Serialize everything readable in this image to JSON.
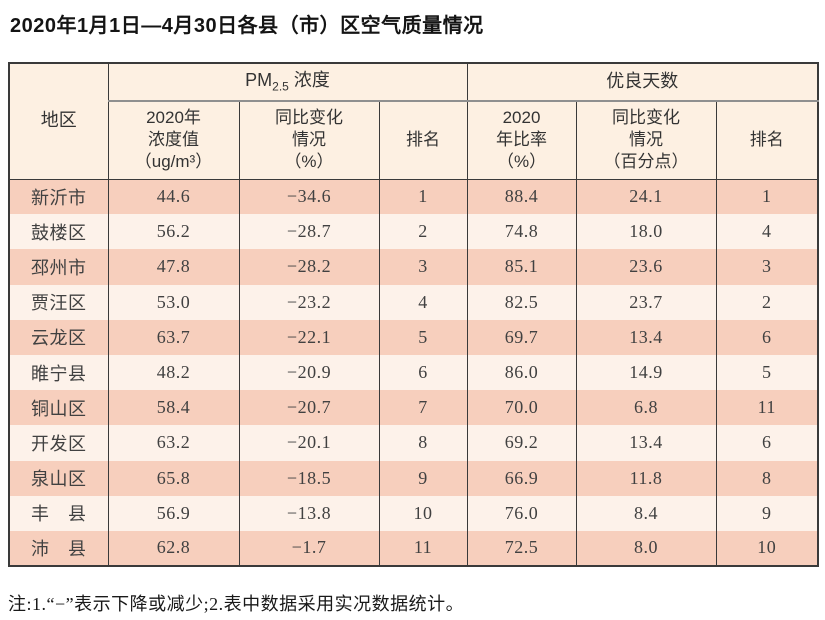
{
  "page": {
    "title": "2020年1月1日—4月30日各县（市）区空气质量情况",
    "note": "注:1.“−”表示下降或减少;2.表中数据采用实况数据统计。"
  },
  "colors": {
    "row-pink": "#f7cfbd",
    "row-light": "#fdf2ea",
    "header-bg": "#fdf0e2",
    "border-dark": "#3a3a3a",
    "divider-gray": "#8f8f8f",
    "text": "#3f3f3f"
  },
  "table": {
    "region_header": "地区",
    "group_headers": {
      "pm25_prefix": "PM",
      "pm25_sub": "2.5",
      "pm25_suffix": " 浓度",
      "good_days": "优良天数"
    },
    "sub_headers": {
      "pm25_value": "2020年\n浓度值\n（ug/m³）",
      "pm25_change": "同比变化\n情况\n（%）",
      "pm25_rank": "排名",
      "good_rate": "2020\n年比率\n（%）",
      "good_change": "同比变化\n情况\n（百分点）",
      "good_rank": "排名"
    },
    "rows": [
      {
        "region": "新沂市",
        "pm25": "44.6",
        "pm25_change": "−34.6",
        "pm25_rank": "1",
        "good_rate": "88.4",
        "good_change": "24.1",
        "good_rank": "1"
      },
      {
        "region": "鼓楼区",
        "pm25": "56.2",
        "pm25_change": "−28.7",
        "pm25_rank": "2",
        "good_rate": "74.8",
        "good_change": "18.0",
        "good_rank": "4"
      },
      {
        "region": "邳州市",
        "pm25": "47.8",
        "pm25_change": "−28.2",
        "pm25_rank": "3",
        "good_rate": "85.1",
        "good_change": "23.6",
        "good_rank": "3"
      },
      {
        "region": "贾汪区",
        "pm25": "53.0",
        "pm25_change": "−23.2",
        "pm25_rank": "4",
        "good_rate": "82.5",
        "good_change": "23.7",
        "good_rank": "2"
      },
      {
        "region": "云龙区",
        "pm25": "63.7",
        "pm25_change": "−22.1",
        "pm25_rank": "5",
        "good_rate": "69.7",
        "good_change": "13.4",
        "good_rank": "6"
      },
      {
        "region": "睢宁县",
        "pm25": "48.2",
        "pm25_change": "−20.9",
        "pm25_rank": "6",
        "good_rate": "86.0",
        "good_change": "14.9",
        "good_rank": "5"
      },
      {
        "region": "铜山区",
        "pm25": "58.4",
        "pm25_change": "−20.7",
        "pm25_rank": "7",
        "good_rate": "70.0",
        "good_change": "6.8",
        "good_rank": "11"
      },
      {
        "region": "开发区",
        "pm25": "63.2",
        "pm25_change": "−20.1",
        "pm25_rank": "8",
        "good_rate": "69.2",
        "good_change": "13.4",
        "good_rank": "6"
      },
      {
        "region": "泉山区",
        "pm25": "65.8",
        "pm25_change": "−18.5",
        "pm25_rank": "9",
        "good_rate": "66.9",
        "good_change": "11.8",
        "good_rank": "8"
      },
      {
        "region": "丰　县",
        "pm25": "56.9",
        "pm25_change": "−13.8",
        "pm25_rank": "10",
        "good_rate": "76.0",
        "good_change": "8.4",
        "good_rank": "9"
      },
      {
        "region": "沛　县",
        "pm25": "62.8",
        "pm25_change": "−1.7",
        "pm25_rank": "11",
        "good_rate": "72.5",
        "good_change": "8.0",
        "good_rank": "10"
      }
    ]
  }
}
